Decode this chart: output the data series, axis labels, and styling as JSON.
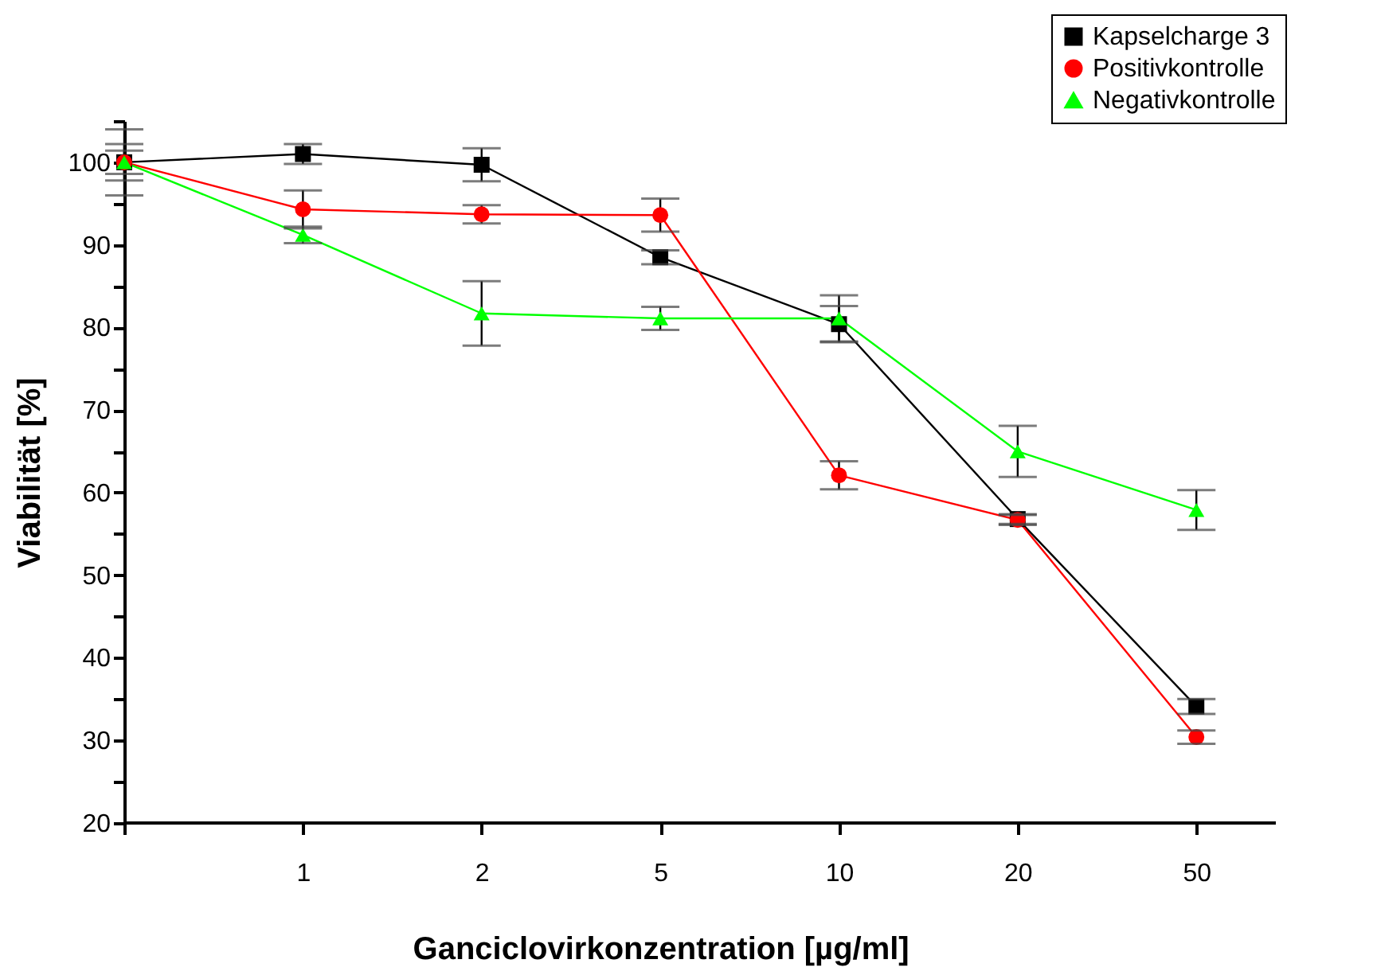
{
  "chart_data": {
    "type": "line",
    "xlabel": "Ganciclovirkonzentration [µg/ml]",
    "ylabel": "Viabilität [%]",
    "categories": [
      null,
      "1",
      "2",
      "5",
      "10",
      "20",
      "50"
    ],
    "ylim": [
      20,
      105
    ],
    "yticks": [
      20,
      {
        "value": 25,
        "label": null
      },
      30,
      {
        "value": 35,
        "label": null
      },
      40,
      {
        "value": 45,
        "label": null
      },
      50,
      {
        "value": 55,
        "label": null
      },
      60,
      {
        "value": 65,
        "label": null
      },
      70,
      {
        "value": 75,
        "label": null
      },
      80,
      {
        "value": 85,
        "label": null
      },
      90,
      {
        "value": 95,
        "label": null
      },
      100,
      {
        "value": 105,
        "label": null
      }
    ],
    "legend": "top right",
    "grid": false,
    "series": [
      {
        "name": "Kapselcharge 3",
        "color": "#000000",
        "marker": "square",
        "values": [
          100,
          101,
          99.7,
          88.5,
          80.4,
          56.8,
          34.1
        ],
        "errors": [
          1.4,
          1.2,
          2,
          0.85,
          2.2,
          0.6,
          0.9
        ]
      },
      {
        "name": "Positivkontrolle",
        "color": "#ff0000",
        "marker": "circle",
        "values": [
          100,
          94.3,
          93.7,
          93.6,
          62.1,
          56.7,
          30.4
        ],
        "errors": [
          2.2,
          2.3,
          1.1,
          2,
          1.7,
          0.6,
          0.8
        ]
      },
      {
        "name": "Negativkontrolle",
        "color": "#00ff00",
        "marker": "triangle",
        "values": [
          100,
          91.2,
          81.7,
          81.1,
          81.1,
          65,
          57.9
        ],
        "errors": [
          4,
          1,
          3.9,
          1.4,
          2.8,
          3.1,
          2.4
        ]
      }
    ]
  }
}
